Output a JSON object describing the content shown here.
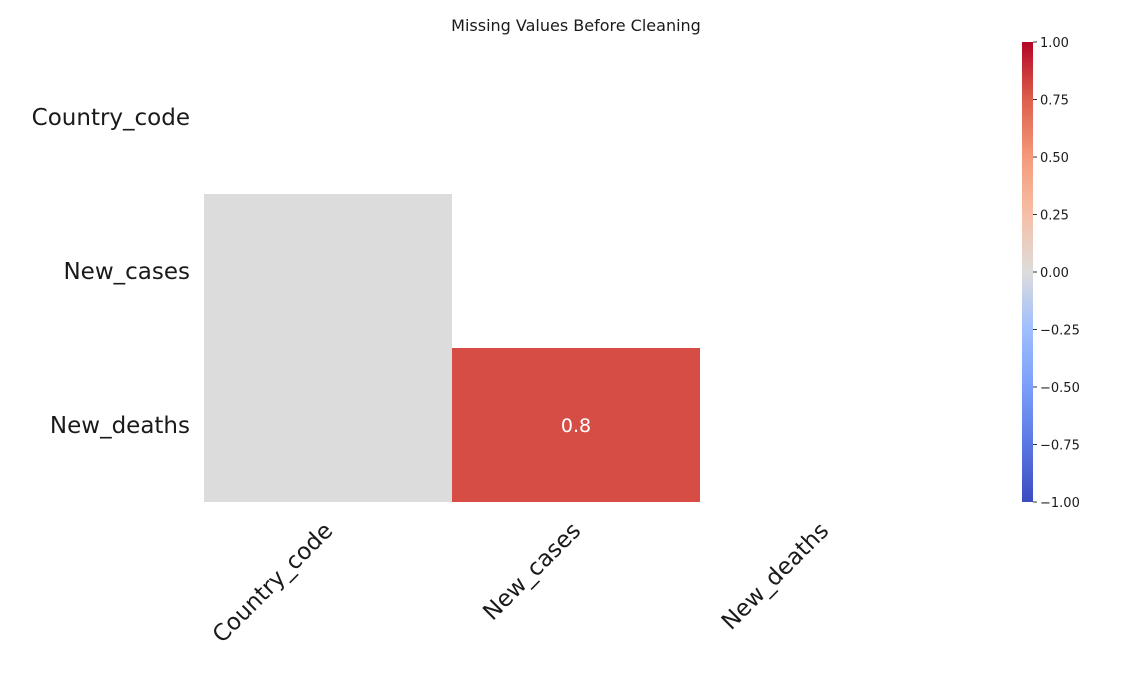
{
  "chart_data": {
    "type": "heatmap",
    "title": "Missing Values Before Cleaning",
    "rows": [
      "Country_code",
      "New_cases",
      "New_deaths"
    ],
    "columns": [
      "Country_code",
      "New_cases",
      "New_deaths"
    ],
    "mask": "upper-triangle-including-diagonal",
    "cells": [
      {
        "row": "New_cases",
        "col": "Country_code",
        "value": 0.0,
        "label": ""
      },
      {
        "row": "New_deaths",
        "col": "Country_code",
        "value": 0.0,
        "label": ""
      },
      {
        "row": "New_deaths",
        "col": "New_cases",
        "value": 0.8,
        "label": "0.8"
      }
    ],
    "colormap": "coolwarm",
    "vmin": -1,
    "vmax": 1,
    "colorbar": {
      "ticks": [
        1.0,
        0.75,
        0.5,
        0.25,
        0.0,
        -0.25,
        -0.5,
        -0.75,
        -1.0
      ],
      "tick_labels": [
        "1.00",
        "0.75",
        "0.50",
        "0.25",
        "0.00",
        "−0.25",
        "−0.50",
        "−0.75",
        "−1.00"
      ]
    },
    "legend_placement": "right",
    "grid": false
  }
}
